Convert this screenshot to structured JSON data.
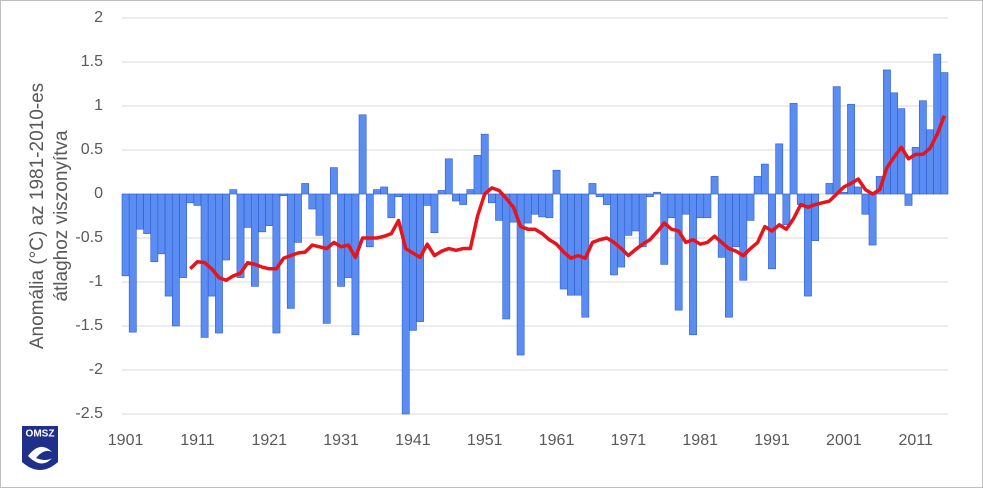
{
  "chart_data": {
    "type": "bar_line",
    "ylabel": [
      "Anomália (°C) az 1981-2010-es",
      "átlaghoz viszonyítva"
    ],
    "logo_text": "OMSZ",
    "x": [
      1901,
      1902,
      1903,
      1904,
      1905,
      1906,
      1907,
      1908,
      1909,
      1910,
      1911,
      1912,
      1913,
      1914,
      1915,
      1916,
      1917,
      1918,
      1919,
      1920,
      1921,
      1922,
      1923,
      1924,
      1925,
      1926,
      1927,
      1928,
      1929,
      1930,
      1931,
      1932,
      1933,
      1934,
      1935,
      1936,
      1937,
      1938,
      1939,
      1940,
      1941,
      1942,
      1943,
      1944,
      1945,
      1946,
      1947,
      1948,
      1949,
      1950,
      1951,
      1952,
      1953,
      1954,
      1955,
      1956,
      1957,
      1958,
      1959,
      1960,
      1961,
      1962,
      1963,
      1964,
      1965,
      1966,
      1967,
      1968,
      1969,
      1970,
      1971,
      1972,
      1973,
      1974,
      1975,
      1976,
      1977,
      1978,
      1979,
      1980,
      1981,
      1982,
      1983,
      1984,
      1985,
      1986,
      1987,
      1988,
      1989,
      1990,
      1991,
      1992,
      1993,
      1994,
      1995,
      1996,
      1997,
      1998,
      1999,
      2000,
      2001,
      2002,
      2003,
      2004,
      2005,
      2006,
      2007,
      2008,
      2009,
      2010,
      2011,
      2012,
      2013,
      2014,
      2015
    ],
    "series": [
      {
        "type": "bar",
        "color": "#5a8cf2",
        "edge_color": "#2d5ccc",
        "values": [
          -0.93,
          -1.57,
          -0.4,
          -0.45,
          -0.77,
          -0.68,
          -1.16,
          -1.5,
          -0.95,
          -0.1,
          -0.13,
          -1.63,
          -1.16,
          -1.58,
          -0.75,
          0.05,
          -0.95,
          -0.38,
          -1.05,
          -0.43,
          -0.36,
          -1.58,
          -0.02,
          -1.3,
          -0.55,
          0.12,
          -0.17,
          -0.47,
          -1.47,
          0.3,
          -1.05,
          -0.95,
          -1.6,
          0.9,
          -0.6,
          0.05,
          0.08,
          -0.27,
          -0.03,
          -2.5,
          -1.55,
          -1.45,
          -0.13,
          -0.44,
          0.04,
          0.4,
          -0.08,
          -0.12,
          0.05,
          0.44,
          0.68,
          -0.1,
          -0.3,
          -1.42,
          -0.32,
          -1.83,
          -0.33,
          -0.23,
          -0.26,
          -0.27,
          0.27,
          -1.08,
          -1.15,
          -1.15,
          -1.4,
          0.12,
          -0.03,
          -0.12,
          -0.92,
          -0.83,
          -0.47,
          -0.42,
          -0.6,
          -0.03,
          0.02,
          -0.8,
          -0.27,
          -1.32,
          -0.23,
          -1.6,
          -0.27,
          -0.27,
          0.2,
          -0.72,
          -1.4,
          -0.6,
          -0.98,
          -0.3,
          0.2,
          0.34,
          -0.85,
          0.57,
          -0.35,
          1.03,
          -0.12,
          -1.16,
          -0.53,
          0.0,
          0.12,
          1.22,
          0.02,
          1.02,
          0.08,
          -0.23,
          -0.58,
          0.2,
          1.41,
          1.15,
          0.97,
          -0.13,
          0.53,
          1.06,
          0.73,
          1.59,
          1.38
        ]
      },
      {
        "type": "line",
        "color": "#e8141b",
        "values": [
          null,
          null,
          null,
          null,
          null,
          null,
          null,
          null,
          null,
          -0.85,
          -0.77,
          -0.78,
          -0.85,
          -0.95,
          -0.98,
          -0.93,
          -0.9,
          -0.78,
          -0.8,
          -0.83,
          -0.85,
          -0.85,
          -0.73,
          -0.7,
          -0.67,
          -0.66,
          -0.58,
          -0.6,
          -0.62,
          -0.55,
          -0.6,
          -0.58,
          -0.72,
          -0.5,
          -0.5,
          -0.5,
          -0.48,
          -0.45,
          -0.3,
          -0.62,
          -0.67,
          -0.72,
          -0.57,
          -0.7,
          -0.65,
          -0.62,
          -0.64,
          -0.62,
          -0.62,
          -0.25,
          0.0,
          0.07,
          0.04,
          -0.05,
          -0.15,
          -0.37,
          -0.4,
          -0.4,
          -0.45,
          -0.52,
          -0.57,
          -0.66,
          -0.73,
          -0.7,
          -0.73,
          -0.55,
          -0.52,
          -0.5,
          -0.55,
          -0.62,
          -0.7,
          -0.63,
          -0.57,
          -0.52,
          -0.43,
          -0.33,
          -0.4,
          -0.42,
          -0.55,
          -0.52,
          -0.57,
          -0.55,
          -0.48,
          -0.55,
          -0.62,
          -0.65,
          -0.7,
          -0.62,
          -0.55,
          -0.37,
          -0.42,
          -0.35,
          -0.4,
          -0.28,
          -0.12,
          -0.15,
          -0.12,
          -0.1,
          -0.08,
          0.0,
          0.08,
          0.12,
          0.17,
          0.05,
          0.0,
          0.05,
          0.3,
          0.42,
          0.53,
          0.4,
          0.45,
          0.45,
          0.52,
          0.68,
          0.89
        ]
      }
    ],
    "xlim": [
      1900.5,
      2015.5
    ],
    "xticks": [
      1901,
      1911,
      1921,
      1931,
      1941,
      1951,
      1961,
      1971,
      1981,
      1991,
      2001,
      2011
    ],
    "ylim": [
      -2.5,
      2
    ],
    "yticks": [
      2,
      1.5,
      1,
      0.5,
      0,
      -0.5,
      -1,
      -1.5,
      -2,
      -2.5
    ],
    "grid": true
  }
}
